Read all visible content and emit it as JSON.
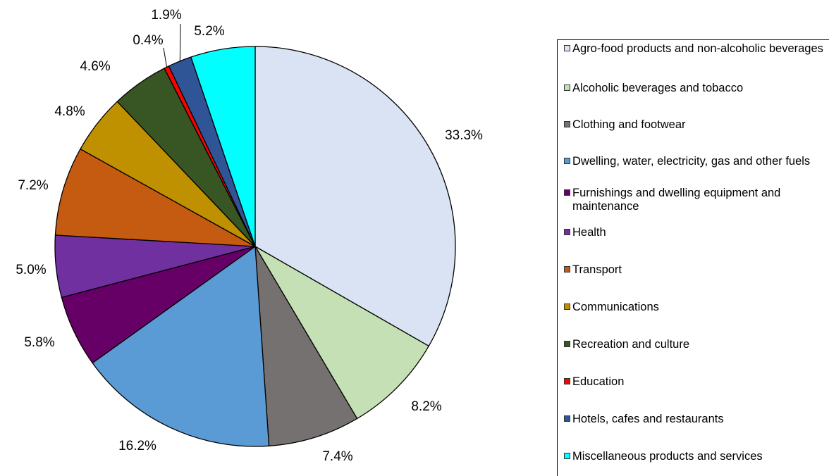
{
  "chart_data": {
    "type": "pie",
    "title": "",
    "slices": [
      {
        "label": "Agro-food products and non-alcoholic beverages",
        "value": 33.3,
        "value_label": "33.3%",
        "color": "#dae3f3"
      },
      {
        "label": "Alcoholic beverages and tobacco",
        "value": 8.2,
        "value_label": "8.2%",
        "color": "#c5e0b4"
      },
      {
        "label": "Clothing and footwear",
        "value": 7.4,
        "value_label": "7.4%",
        "color": "#767171"
      },
      {
        "label": "Dwelling, water, electricity, gas and other fuels",
        "value": 16.2,
        "value_label": "16.2%",
        "color": "#5b9bd5"
      },
      {
        "label": "Furnishings and dwelling equipment and maintenance",
        "value": 5.8,
        "value_label": "5.8%",
        "color": "#660066"
      },
      {
        "label": "Health",
        "value": 5.0,
        "value_label": "5.0%",
        "color": "#7030a0"
      },
      {
        "label": "Transport",
        "value": 7.2,
        "value_label": "7.2%",
        "color": "#c55a11"
      },
      {
        "label": "Communications",
        "value": 4.8,
        "value_label": "4.8%",
        "color": "#bf9000"
      },
      {
        "label": "Recreation and culture",
        "value": 4.6,
        "value_label": "4.6%",
        "color": "#375623"
      },
      {
        "label": "Education",
        "value": 0.4,
        "value_label": "0.4%",
        "color": "#ff0000"
      },
      {
        "label": "Hotels, cafes and restaurants",
        "value": 1.9,
        "value_label": "1.9%",
        "color": "#2f5597"
      },
      {
        "label": "Miscellaneous products and services",
        "value": 5.2,
        "value_label": "5.2%",
        "color": "#00ffff"
      }
    ],
    "legend_position": "right",
    "start_angle": "12 o'clock",
    "direction": "clockwise"
  }
}
